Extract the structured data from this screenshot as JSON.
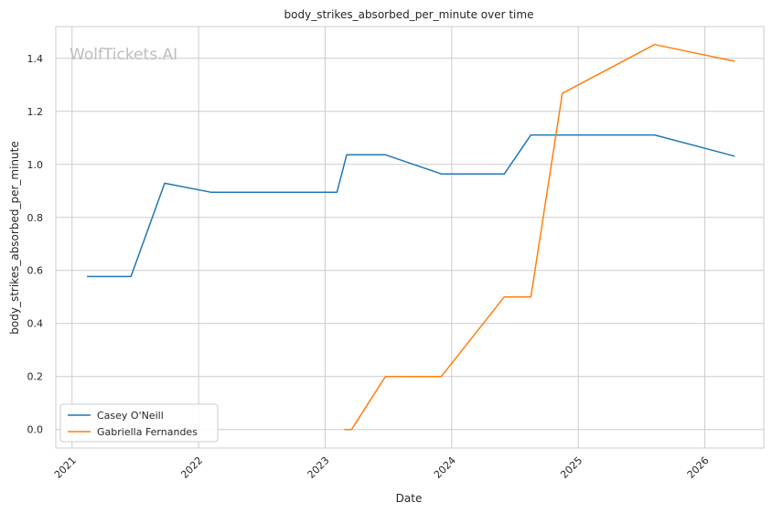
{
  "chart_data": {
    "type": "line",
    "title": "body_strikes_absorbed_per_minute over time",
    "xlabel": "Date",
    "ylabel": "body_strikes_absorbed_per_minute",
    "watermark": "WolfTickets.AI",
    "x_ticks": [
      "2021",
      "2022",
      "2023",
      "2024",
      "2025",
      "2026"
    ],
    "y_ticks": [
      "0.0",
      "0.2",
      "0.4",
      "0.6",
      "0.8",
      "1.0",
      "1.2",
      "1.4"
    ],
    "xlim": [
      "2020-11-15",
      "2026-06-20"
    ],
    "ylim": [
      -0.07,
      1.52
    ],
    "grid": true,
    "legend_position": "lower-left",
    "series": [
      {
        "name": "Casey O'Neill",
        "color": "#1f77b4",
        "points": [
          [
            "2021-02-13",
            0.577
          ],
          [
            "2021-06-20",
            0.577
          ],
          [
            "2021-09-25",
            0.929
          ],
          [
            "2022-02-05",
            0.895
          ],
          [
            "2023-02-04",
            0.895
          ],
          [
            "2023-03-04",
            1.036
          ],
          [
            "2023-06-24",
            1.036
          ],
          [
            "2023-12-02",
            0.964
          ],
          [
            "2024-06-01",
            0.964
          ],
          [
            "2024-08-17",
            1.111
          ],
          [
            "2025-08-09",
            1.111
          ],
          [
            "2026-03-28",
            1.031
          ]
        ]
      },
      {
        "name": "Gabriella Fernandes",
        "color": "#ff7f0e",
        "points": [
          [
            "2023-02-25",
            0.0
          ],
          [
            "2023-03-18",
            0.0
          ],
          [
            "2023-06-24",
            0.2
          ],
          [
            "2023-12-02",
            0.2
          ],
          [
            "2024-06-01",
            0.5
          ],
          [
            "2024-08-17",
            0.5
          ],
          [
            "2024-11-16",
            1.268
          ],
          [
            "2025-08-09",
            1.452
          ],
          [
            "2026-03-28",
            1.389
          ]
        ]
      }
    ]
  }
}
